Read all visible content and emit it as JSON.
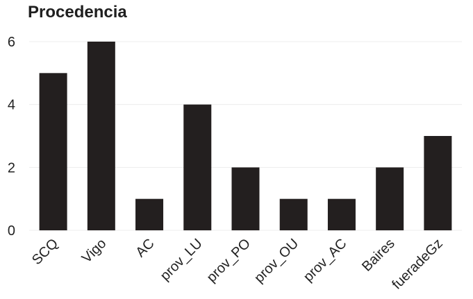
{
  "chart_data": {
    "type": "bar",
    "title": "Procedencia",
    "categories": [
      "SCQ",
      "Vigo",
      "AC",
      "prov_LU",
      "prov_PO",
      "prov_OU",
      "prov_AC",
      "Baires",
      "fueradeGz"
    ],
    "values": [
      5,
      6,
      1,
      4,
      2,
      1,
      1,
      2,
      3
    ],
    "xlabel": "",
    "ylabel": "",
    "ylim": [
      0,
      6
    ],
    "yticks": [
      0,
      2,
      4,
      6
    ],
    "grid": true,
    "legend": "none",
    "colors": {
      "bar": "#231f1f",
      "grid": "#ececec",
      "text": "#222222"
    }
  }
}
